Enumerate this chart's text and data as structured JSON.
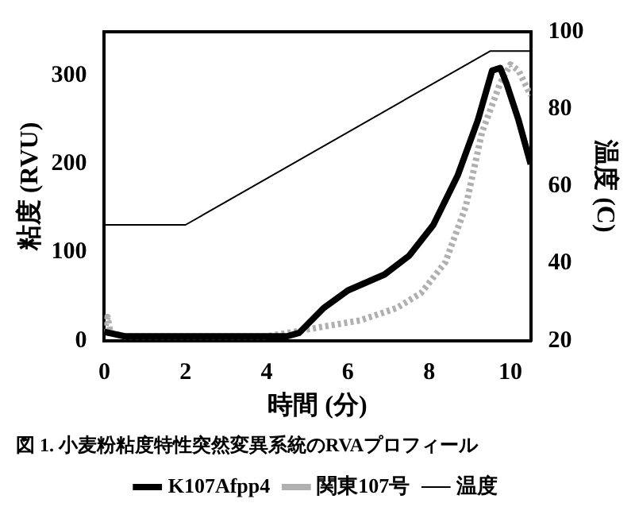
{
  "chart_data": {
    "type": "line",
    "title": "図 1. 小麦粉粘度特性突然変異系統のRVAプロフィール",
    "xlabel": "時間 (分)",
    "ylabel": "粘度 (RVU)",
    "y2label": "温度 (C)",
    "xlim": [
      0,
      10.5
    ],
    "xticks": [
      0,
      2,
      4,
      6,
      8,
      10
    ],
    "ylim": [
      0,
      350
    ],
    "yticks": [
      0,
      100,
      200,
      300
    ],
    "y2lim": [
      20,
      100
    ],
    "y2ticks": [
      20,
      40,
      60,
      80,
      100
    ],
    "grid": false,
    "legend": "bottom",
    "marker": "none",
    "series": [
      {
        "name": "K107Afpp4",
        "color": "#000000",
        "line_style": "solid",
        "x": [
          0,
          0.2,
          0.5,
          2,
          4,
          4.5,
          4.8,
          5.4,
          6,
          6.9,
          7.5,
          8.1,
          8.7,
          9.2,
          9.55,
          9.75,
          9.9,
          10.2,
          10.5
        ],
        "values": [
          10,
          8,
          5,
          5,
          5,
          5,
          9,
          37,
          57,
          75,
          96,
          131,
          187,
          250,
          306,
          309,
          292,
          250,
          200
        ]
      },
      {
        "name": "関東107号",
        "color": "#b0b0b0",
        "line_style": "dotted",
        "x": [
          0,
          0.08,
          0.15,
          0.5,
          4,
          4.55,
          5.4,
          6.3,
          7.2,
          7.8,
          8.4,
          8.9,
          9.3,
          9.75,
          10,
          10.2,
          10.5
        ],
        "values": [
          10,
          27,
          9,
          5,
          5,
          9,
          16,
          23,
          37,
          54,
          89,
          152,
          236,
          292,
          313,
          306,
          278
        ]
      },
      {
        "name": "温度",
        "color": "#000000",
        "line_style": "solid",
        "axis": "y2",
        "x": [
          0,
          2,
          9.5,
          10.5
        ],
        "values": [
          50,
          50,
          95,
          95
        ]
      }
    ]
  }
}
